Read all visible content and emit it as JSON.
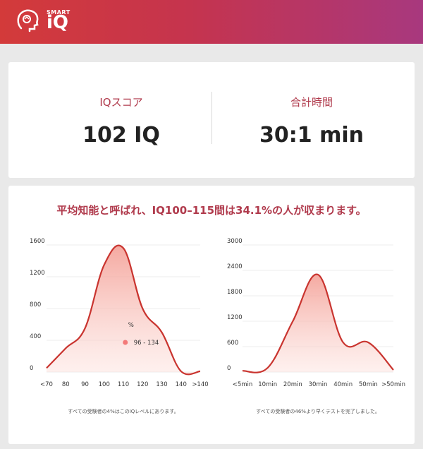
{
  "app": {
    "brand_small": "SMART",
    "brand_large": "iQ"
  },
  "score": {
    "iq_label": "IQスコア",
    "iq_value": "102 IQ",
    "time_label": "合計時間",
    "time_value": "30:1 min"
  },
  "headline": "平均知能と呼ばれ、IQ100–115間は34.1%の人が収まります。",
  "colors": {
    "accent": "#c9342f",
    "fill": "#f4a39a",
    "label": "#b03a4c"
  },
  "chart_data": [
    {
      "type": "area",
      "x": [
        "<70",
        "80",
        "90",
        "100",
        "110",
        "120",
        "130",
        "140",
        ">140"
      ],
      "values": [
        50,
        300,
        550,
        1350,
        1560,
        800,
        500,
        10,
        10
      ],
      "ylim": [
        0,
        1600
      ],
      "yticks": [
        "0",
        "400",
        "800",
        "1200",
        "1600"
      ],
      "marker_labels": [
        "%",
        "96 - 134"
      ],
      "caption": "すべての受験者の4%はこのIQレベルにあります。"
    },
    {
      "type": "area",
      "x": [
        "<5min",
        "10min",
        "20min",
        "30min",
        "40min",
        "50min",
        ">50min"
      ],
      "values": [
        30,
        100,
        1200,
        2300,
        700,
        700,
        50
      ],
      "ylim": [
        0,
        3000
      ],
      "yticks": [
        "0",
        "600",
        "1200",
        "1800",
        "2400",
        "3000"
      ],
      "caption": "すべての受験者の46%より早くテストを完了しました。"
    }
  ]
}
